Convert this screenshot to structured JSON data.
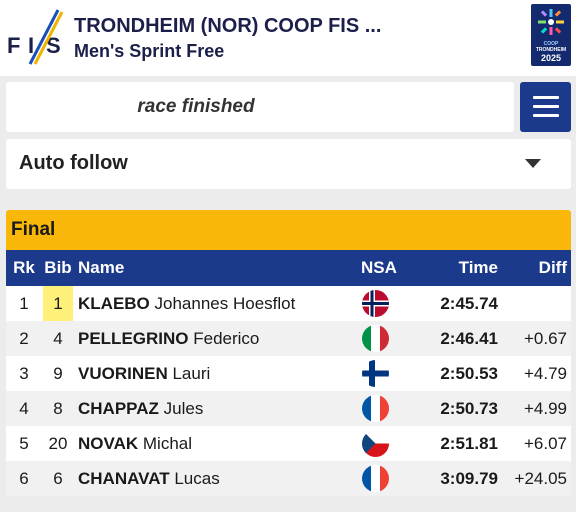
{
  "header": {
    "title": "TRONDHEIM (NOR) COOP FIS ...",
    "subtitle": "Men's Sprint Free",
    "fis_logo_text": "FIS",
    "event_logo": {
      "line1": "COOP",
      "line2": "TRONDHEIM",
      "line3": "2025"
    }
  },
  "status": {
    "text": "race finished"
  },
  "menu": {
    "icon": "hamburger-icon"
  },
  "follow_select": {
    "value": "Auto follow",
    "icon": "caret-down-icon"
  },
  "results": {
    "section_title": "Final",
    "columns": {
      "rank": "Rk",
      "bib": "Bib",
      "name": "Name",
      "nsa": "NSA",
      "time": "Time",
      "diff": "Diff"
    },
    "rows": [
      {
        "rank": "1",
        "bib": "1",
        "last": "KLAEBO",
        "first": "Johannes Hoesflot",
        "nsa": "NOR",
        "time": "2:45.74",
        "diff": ""
      },
      {
        "rank": "2",
        "bib": "4",
        "last": "PELLEGRINO",
        "first": "Federico",
        "nsa": "ITA",
        "time": "2:46.41",
        "diff": "+0.67"
      },
      {
        "rank": "3",
        "bib": "9",
        "last": "VUORINEN",
        "first": "Lauri",
        "nsa": "FIN",
        "time": "2:50.53",
        "diff": "+4.79"
      },
      {
        "rank": "4",
        "bib": "8",
        "last": "CHAPPAZ",
        "first": "Jules",
        "nsa": "FRA",
        "time": "2:50.73",
        "diff": "+4.99"
      },
      {
        "rank": "5",
        "bib": "20",
        "last": "NOVAK",
        "first": "Michal",
        "nsa": "CZE",
        "time": "2:51.81",
        "diff": "+6.07"
      },
      {
        "rank": "6",
        "bib": "6",
        "last": "CHANAVAT",
        "first": "Lucas",
        "nsa": "FRA",
        "time": "3:09.79",
        "diff": "+24.05"
      }
    ]
  },
  "colors": {
    "brand_blue": "#1b3a8c",
    "final_header": "#f8b709",
    "bib_highlight": "#fff07a"
  }
}
